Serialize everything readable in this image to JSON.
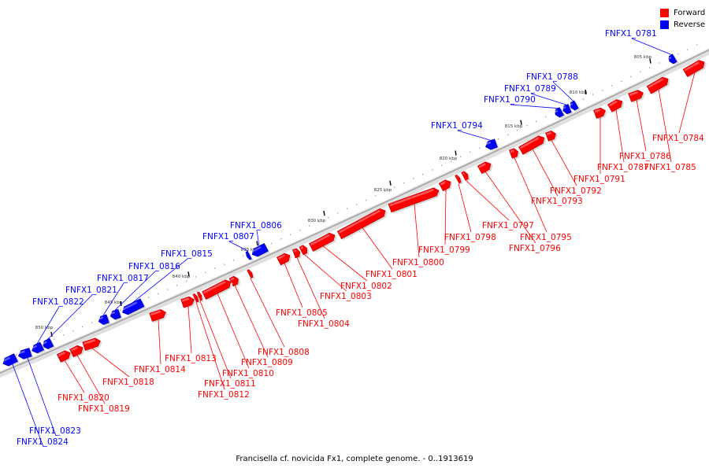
{
  "colors": {
    "forward": "#ff0000",
    "reverse": "#0000ff",
    "backbone": "#a8a8a8",
    "tick": "#000000",
    "scale_text": "#333333"
  },
  "legend": [
    {
      "label": "Forward",
      "color": "#ff0000"
    },
    {
      "label": "Reverse",
      "color": "#0000ff"
    }
  ],
  "caption": "Francisella cf. novicida Fx1, complete genome. - 0..1913619",
  "scale_labels": [
    "805 kbp",
    "810 kbp",
    "815 kbp",
    "820 kbp",
    "825 kbp",
    "830 kbp",
    "835 kbp",
    "840 kbp",
    "845 kbp",
    "850 kbp"
  ],
  "genes": [
    {
      "label": "FNFX1_0781",
      "strand": "reverse"
    },
    {
      "label": "FNFX1_0784",
      "strand": "forward"
    },
    {
      "label": "FNFX1_0785",
      "strand": "forward"
    },
    {
      "label": "FNFX1_0786",
      "strand": "forward"
    },
    {
      "label": "FNFX1_0787",
      "strand": "forward"
    },
    {
      "label": "FNFX1_0788",
      "strand": "reverse"
    },
    {
      "label": "FNFX1_0789",
      "strand": "reverse"
    },
    {
      "label": "FNFX1_0790",
      "strand": "reverse"
    },
    {
      "label": "FNFX1_0791",
      "strand": "forward"
    },
    {
      "label": "FNFX1_0792",
      "strand": "forward"
    },
    {
      "label": "FNFX1_0793",
      "strand": "forward"
    },
    {
      "label": "FNFX1_0794",
      "strand": "reverse"
    },
    {
      "label": "FNFX1_0795",
      "strand": "forward"
    },
    {
      "label": "FNFX1_0796",
      "strand": "forward"
    },
    {
      "label": "FNFX1_0797",
      "strand": "forward"
    },
    {
      "label": "FNFX1_0798",
      "strand": "forward"
    },
    {
      "label": "FNFX1_0799",
      "strand": "forward"
    },
    {
      "label": "FNFX1_0800",
      "strand": "forward"
    },
    {
      "label": "FNFX1_0801",
      "strand": "forward"
    },
    {
      "label": "FNFX1_0802",
      "strand": "forward"
    },
    {
      "label": "FNFX1_0803",
      "strand": "forward"
    },
    {
      "label": "FNFX1_0804",
      "strand": "forward"
    },
    {
      "label": "FNFX1_0805",
      "strand": "forward"
    },
    {
      "label": "FNFX1_0806",
      "strand": "reverse"
    },
    {
      "label": "FNFX1_0807",
      "strand": "reverse"
    },
    {
      "label": "FNFX1_0808",
      "strand": "forward"
    },
    {
      "label": "FNFX1_0809",
      "strand": "forward"
    },
    {
      "label": "FNFX1_0810",
      "strand": "forward"
    },
    {
      "label": "FNFX1_0811",
      "strand": "forward"
    },
    {
      "label": "FNFX1_0812",
      "strand": "forward"
    },
    {
      "label": "FNFX1_0813",
      "strand": "forward"
    },
    {
      "label": "FNFX1_0814",
      "strand": "forward"
    },
    {
      "label": "FNFX1_0815",
      "strand": "reverse"
    },
    {
      "label": "FNFX1_0816",
      "strand": "reverse"
    },
    {
      "label": "FNFX1_0817",
      "strand": "reverse"
    },
    {
      "label": "FNFX1_0818",
      "strand": "forward"
    },
    {
      "label": "FNFX1_0819",
      "strand": "forward"
    },
    {
      "label": "FNFX1_0820",
      "strand": "forward"
    },
    {
      "label": "FNFX1_0821",
      "strand": "reverse"
    },
    {
      "label": "FNFX1_0822",
      "strand": "reverse"
    },
    {
      "label": "FNFX1_0823",
      "strand": "reverse"
    },
    {
      "label": "FNFX1_0824",
      "strand": "reverse"
    }
  ]
}
